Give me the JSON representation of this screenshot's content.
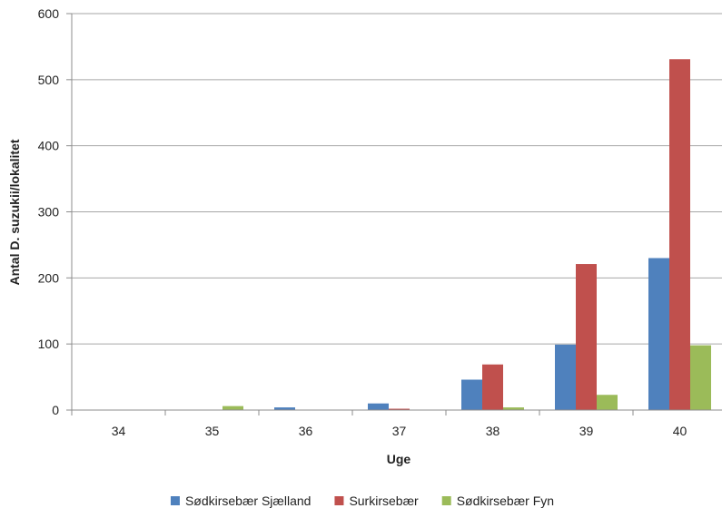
{
  "chart_data": {
    "type": "bar",
    "title": "",
    "xlabel": "Uge",
    "ylabel": "Antal D. suzukii/lokalitet",
    "categories": [
      "34",
      "35",
      "36",
      "37",
      "38",
      "39",
      "40"
    ],
    "ylim": [
      0,
      600
    ],
    "yticks": [
      0,
      100,
      200,
      300,
      400,
      500,
      600
    ],
    "grid": true,
    "legend_position": "bottom",
    "series": [
      {
        "name": "Sødkirsebær Sjælland",
        "color": "#4F81BD",
        "values": [
          0,
          0,
          4,
          10,
          46,
          99,
          230
        ]
      },
      {
        "name": "Surkirsebær",
        "color": "#C0504D",
        "values": [
          0,
          0,
          0,
          2,
          69,
          221,
          531
        ]
      },
      {
        "name": "Sødkirsebær Fyn",
        "color": "#9BBB59",
        "values": [
          0,
          6,
          0,
          0,
          4,
          23,
          98
        ]
      }
    ]
  }
}
